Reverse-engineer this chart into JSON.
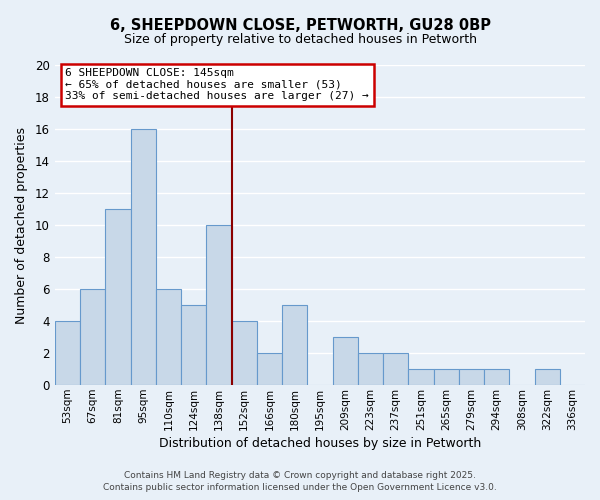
{
  "title": "6, SHEEPDOWN CLOSE, PETWORTH, GU28 0BP",
  "subtitle": "Size of property relative to detached houses in Petworth",
  "xlabel": "Distribution of detached houses by size in Petworth",
  "ylabel": "Number of detached properties",
  "bin_labels": [
    "53sqm",
    "67sqm",
    "81sqm",
    "95sqm",
    "110sqm",
    "124sqm",
    "138sqm",
    "152sqm",
    "166sqm",
    "180sqm",
    "195sqm",
    "209sqm",
    "223sqm",
    "237sqm",
    "251sqm",
    "265sqm",
    "279sqm",
    "294sqm",
    "308sqm",
    "322sqm",
    "336sqm"
  ],
  "bar_heights": [
    4,
    6,
    11,
    16,
    6,
    5,
    10,
    4,
    2,
    5,
    0,
    3,
    2,
    2,
    1,
    1,
    1,
    1,
    0,
    1,
    0
  ],
  "bar_color": "#c8d8e8",
  "bar_edge_color": "#6699cc",
  "ylim": [
    0,
    20
  ],
  "yticks": [
    0,
    2,
    4,
    6,
    8,
    10,
    12,
    14,
    16,
    18,
    20
  ],
  "vline_x_index": 6.5,
  "vline_color": "#8b0000",
  "annotation_title": "6 SHEEPDOWN CLOSE: 145sqm",
  "annotation_line1": "← 65% of detached houses are smaller (53)",
  "annotation_line2": "33% of semi-detached houses are larger (27) →",
  "annotation_box_color": "#ffffff",
  "annotation_box_edge": "#cc0000",
  "background_color": "#e8f0f8",
  "grid_color": "#ffffff",
  "footer1": "Contains HM Land Registry data © Crown copyright and database right 2025.",
  "footer2": "Contains public sector information licensed under the Open Government Licence v3.0."
}
